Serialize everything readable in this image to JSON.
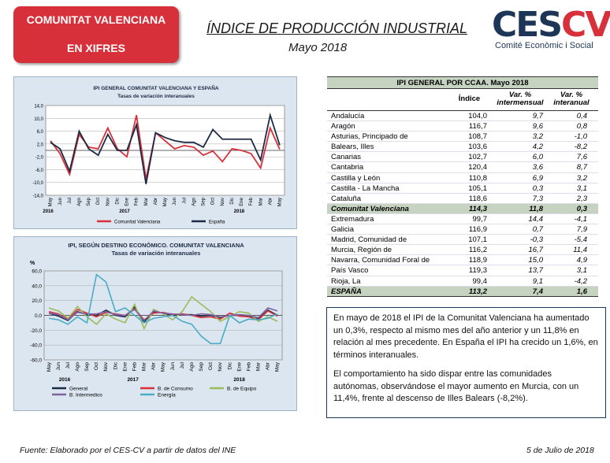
{
  "header": {
    "badge_line1": "COMUNITAT VALENCIANA",
    "badge_line2": "EN XIFRES",
    "title": "ÍNDICE DE PRODUCCIÓN INDUSTRIAL",
    "subtitle": "Mayo 2018",
    "logo_main": "CES",
    "logo_accent": "CV",
    "logo_sub": "Comité Econòmic i Social"
  },
  "table": {
    "title": "IPI GENERAL POR CCAA. Mayo 2018",
    "col1": "Índice",
    "col2": "Var. % intermensual",
    "col3": "Var. % interanual",
    "rows": [
      [
        "Andalucía",
        "104,0",
        "9,7",
        "0,4"
      ],
      [
        "Aragón",
        "116,7",
        "9,6",
        "0,8"
      ],
      [
        "Asturias, Principado de",
        "108,7",
        "3,2",
        "-1,0"
      ],
      [
        "Balears, Illes",
        "103,6",
        "4,2",
        "-8,2"
      ],
      [
        "Canarias",
        "102,7",
        "6,0",
        "7,6"
      ],
      [
        "Cantabria",
        "120,4",
        "3,6",
        "8,7"
      ],
      [
        "Castilla y León",
        "110,8",
        "6,9",
        "3,2"
      ],
      [
        "Castilla - La Mancha",
        "105,1",
        "0,3",
        "3,1"
      ],
      [
        "Cataluña",
        "118,6",
        "7,3",
        "2,3"
      ],
      [
        "Comunitat Valenciana",
        "114,3",
        "11,8",
        "0,3"
      ],
      [
        "Extremadura",
        "99,7",
        "14,4",
        "-4,1"
      ],
      [
        "Galicia",
        "116,9",
        "0,7",
        "7,9"
      ],
      [
        "Madrid, Comunidad de",
        "107,1",
        "-0,3",
        "-5,4"
      ],
      [
        "Murcia, Región de",
        "116,2",
        "16,7",
        "11,4"
      ],
      [
        "Navarra, Comunidad Foral de",
        "118,9",
        "15,0",
        "4,9"
      ],
      [
        "País Vasco",
        "119,3",
        "13,7",
        "3,1"
      ],
      [
        "Rioja, La",
        "99,4",
        "9,1",
        "-4,2"
      ],
      [
        "ESPAÑA",
        "113,2",
        "7,4",
        "1,6"
      ]
    ]
  },
  "note": {
    "p1": "En mayo de 2018 el IPI de la Comunitat Valenciana ha aumentado un 0,3%, respecto al mismo mes del año anterior y un 11,8% en relación al mes precedente. En España el IPI ha crecido un 1,6%, en términos interanuales.",
    "p2": "El comportamiento ha sido dispar entre las comunidades autónomas, observándose el mayor aumento en Murcia, con un 11,4%, frente al descenso de Illes Balears (-8,2%)."
  },
  "footer": {
    "source": "Fuente: Elaborado por el CES-CV a partir de datos del INE",
    "date": "5 de Julio de 2018"
  },
  "chart_data": [
    {
      "type": "line",
      "title": "IPI GENERAL COMUNITAT VALENCIANA Y ESPAÑA",
      "subtitle": "Tasas de variación interanuales",
      "ylim": [
        -14,
        14
      ],
      "yticks": [
        "14,0",
        "10,0",
        "6,0",
        "2,0",
        "-2,0",
        "-6,0",
        "-10,0",
        "-14,0"
      ],
      "categories": [
        "May",
        "Jun",
        "Jul",
        "Ago",
        "Sep",
        "Oct",
        "Nov",
        "Dic",
        "Ene",
        "Feb",
        "Mar",
        "Abr",
        "May",
        "Jun",
        "Jul",
        "Ago",
        "Sep",
        "Oct",
        "Nov",
        "Dic",
        "Ene",
        "Feb",
        "Mar",
        "Abr",
        "May"
      ],
      "years": [
        "2016",
        "2017",
        "2018"
      ],
      "series": [
        {
          "name": "Comunitat Valenciana",
          "color": "#d8303b",
          "values": [
            3.0,
            -1.0,
            -7.5,
            5.0,
            1.0,
            0.5,
            7.0,
            0.5,
            -2.0,
            11.0,
            -9.0,
            5.5,
            3.0,
            0.5,
            1.5,
            1.0,
            -1.5,
            -0.2,
            -3.5,
            0.5,
            0.0,
            -1.0,
            -5.5,
            7.0,
            0.3
          ]
        },
        {
          "name": "España",
          "color": "#1d2a44",
          "values": [
            2.5,
            0.5,
            -6.5,
            6.0,
            0.5,
            -1.5,
            5.0,
            0.0,
            0.0,
            8.0,
            -10.5,
            5.5,
            4.0,
            3.0,
            2.5,
            2.5,
            1.0,
            6.5,
            3.5,
            3.5,
            3.5,
            3.5,
            -3.0,
            11.0,
            1.6
          ]
        }
      ]
    },
    {
      "type": "line",
      "title": "IPI, SEGÚN DESTINO ECONÓMICO. COMUNITAT VALENCIANA",
      "subtitle": "Tasas de variación interanuales",
      "ylabel": "%",
      "ylim": [
        -60,
        60
      ],
      "yticks": [
        "60,0",
        "40,0",
        "20,0",
        "0,0",
        "-20,0",
        "-40,0",
        "-60,0"
      ],
      "categories": [
        "May",
        "Jun",
        "Jul",
        "Ago",
        "Sep",
        "Oct",
        "Nov",
        "Dic",
        "Ene",
        "Feb",
        "Mar",
        "Abr",
        "May",
        "Jun",
        "Jul",
        "Ago",
        "Sep",
        "Oct",
        "Nov",
        "Dic",
        "Ene",
        "Feb",
        "Mar",
        "Abr",
        "May"
      ],
      "years": [
        "2016",
        "2017",
        "2018"
      ],
      "series": [
        {
          "name": "General",
          "color": "#1d2a44",
          "values": [
            3,
            -1,
            -7,
            5,
            1,
            0,
            7,
            0,
            -2,
            11,
            -9,
            5,
            3,
            0,
            1,
            1,
            -1,
            0,
            -3,
            0,
            0,
            -1,
            -5,
            7,
            0
          ]
        },
        {
          "name": "B. de Consumo",
          "color": "#d8303b",
          "values": [
            5,
            2,
            -5,
            8,
            3,
            -2,
            4,
            2,
            0,
            9,
            -6,
            3,
            4,
            1,
            2,
            0,
            -3,
            -2,
            -5,
            3,
            -1,
            -2,
            -6,
            6,
            -1
          ]
        },
        {
          "name": "B. de Equipo",
          "color": "#9bbb59",
          "values": [
            10,
            6,
            -4,
            12,
            -2,
            -12,
            2,
            -5,
            -10,
            15,
            -18,
            8,
            2,
            -6,
            5,
            25,
            15,
            5,
            -8,
            -2,
            5,
            3,
            -8,
            -2,
            -8
          ]
        },
        {
          "name": "B. Intermedios",
          "color": "#8064a2",
          "values": [
            3,
            1,
            -6,
            4,
            2,
            2,
            5,
            1,
            0,
            8,
            -7,
            6,
            3,
            2,
            1,
            0,
            2,
            1,
            -2,
            0,
            1,
            0,
            -3,
            10,
            6
          ]
        },
        {
          "name": "Energía",
          "color": "#4bacc6",
          "values": [
            -4,
            -6,
            -12,
            -2,
            -10,
            55,
            45,
            5,
            10,
            0,
            -10,
            -4,
            -2,
            0,
            -8,
            -12,
            -28,
            -38,
            -38,
            0,
            -10,
            -5,
            -6,
            -4,
            2
          ]
        }
      ]
    }
  ]
}
